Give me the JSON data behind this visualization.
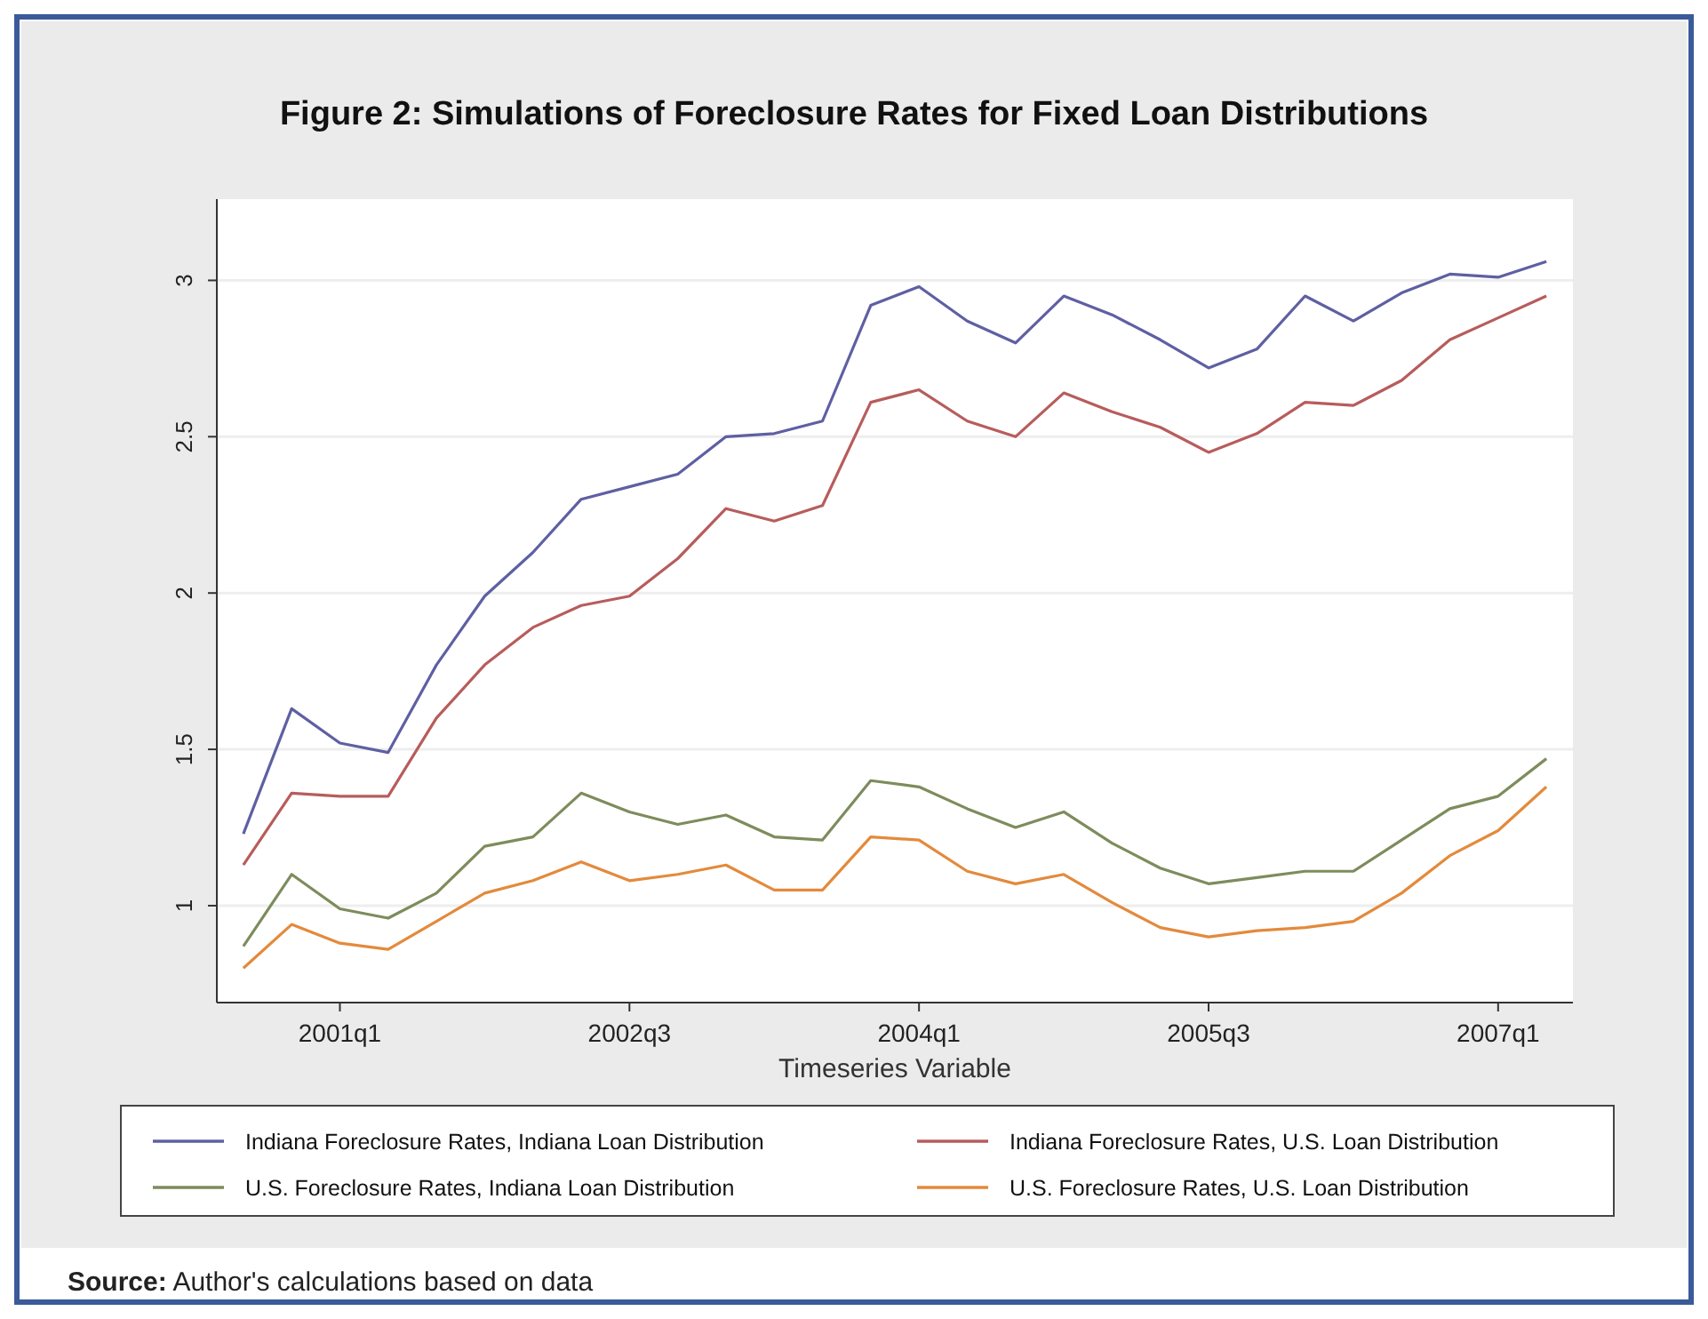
{
  "chart_data": {
    "type": "line",
    "title": "Figure 2: Simulations of Foreclosure Rates for Fixed Loan Distributions",
    "xlabel": "Timeseries Variable",
    "categories": [
      null,
      null,
      "2001q1",
      null,
      null,
      null,
      null,
      null,
      "2002q3",
      null,
      null,
      null,
      null,
      null,
      "2004q1",
      null,
      null,
      null,
      null,
      null,
      "2005q3",
      null,
      null,
      null,
      null,
      null,
      "2007q1",
      null
    ],
    "series": [
      {
        "name": "Indiana Foreclosure Rates, Indiana Loan Distribution",
        "color": "#5f5fa3",
        "values": [
          1.23,
          1.63,
          1.52,
          1.49,
          1.77,
          1.99,
          2.13,
          2.3,
          2.34,
          2.38,
          2.5,
          2.51,
          2.55,
          2.92,
          2.98,
          2.87,
          2.8,
          2.95,
          2.89,
          2.81,
          2.72,
          2.78,
          2.95,
          2.87,
          2.96,
          3.02,
          3.01,
          3.06
        ]
      },
      {
        "name": "Indiana Foreclosure Rates, U.S. Loan Distribution",
        "color": "#b85c5c",
        "values": [
          1.13,
          1.36,
          1.35,
          1.35,
          1.6,
          1.77,
          1.89,
          1.96,
          1.99,
          2.11,
          2.27,
          2.23,
          2.28,
          2.61,
          2.65,
          2.55,
          2.5,
          2.64,
          2.58,
          2.53,
          2.45,
          2.51,
          2.61,
          2.6,
          2.68,
          2.81,
          2.88,
          2.95
        ]
      },
      {
        "name": "U.S. Foreclosure Rates, Indiana Loan Distribution",
        "color": "#7d8c5c",
        "values": [
          0.87,
          1.1,
          0.99,
          0.96,
          1.04,
          1.19,
          1.22,
          1.36,
          1.3,
          1.26,
          1.29,
          1.22,
          1.21,
          1.4,
          1.38,
          1.31,
          1.25,
          1.3,
          1.2,
          1.12,
          1.07,
          1.09,
          1.11,
          1.11,
          1.21,
          1.31,
          1.35,
          1.47
        ]
      },
      {
        "name": "U.S. Foreclosure Rates, U.S. Loan Distribution",
        "color": "#e38a3c",
        "values": [
          0.8,
          0.94,
          0.88,
          0.86,
          0.95,
          1.04,
          1.08,
          1.14,
          1.08,
          1.1,
          1.13,
          1.05,
          1.05,
          1.22,
          1.21,
          1.11,
          1.07,
          1.1,
          1.01,
          0.93,
          0.9,
          0.92,
          0.93,
          0.95,
          1.04,
          1.16,
          1.24,
          1.38
        ]
      }
    ],
    "ylim": [
      0.69,
      3.26
    ],
    "yticks": [
      1,
      1.5,
      2,
      2.5,
      3
    ],
    "grid": "y",
    "legend": "bottom",
    "annotations": [
      "Source: Author's calculations based on data"
    ]
  }
}
